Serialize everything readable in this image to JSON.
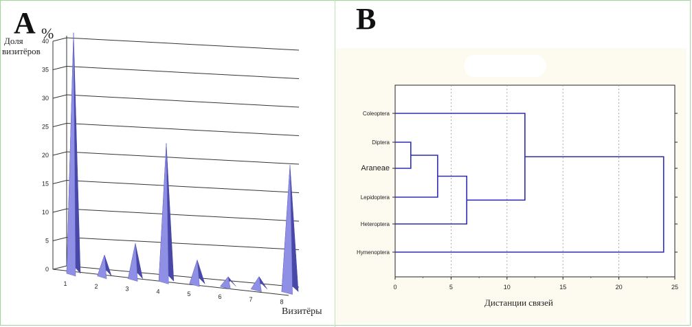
{
  "panel_a": {
    "letter": "A",
    "unit": "%",
    "ylabel_line1": "Доля",
    "ylabel_line2": "визитёров",
    "xlabel": "Визитёры"
  },
  "panel_b": {
    "letter": "B",
    "xlabel": "Дистанции связей"
  },
  "chart_data": [
    {
      "type": "bar",
      "categories": [
        "1",
        "2",
        "3",
        "4",
        "5",
        "6",
        "7",
        "8"
      ],
      "values": [
        41,
        2.5,
        5,
        23,
        3,
        0.5,
        1,
        21
      ],
      "ylabel": "Доля визитёров",
      "unit": "%",
      "xlabel": "Визитёры",
      "yticks": [
        0,
        5,
        10,
        15,
        20,
        25,
        30,
        35,
        40
      ],
      "ylim": [
        0,
        40
      ],
      "grid": true,
      "colors": {
        "bar": "#8f8fe6",
        "bar_dark": "#4848a8",
        "grid": "#333333"
      }
    },
    {
      "type": "dendrogram",
      "leaves": [
        "Coleoptera",
        "Diptera",
        "Araneae",
        "Lepidoptera",
        "Heteroptera",
        "Hymenoptera"
      ],
      "merges": [
        {
          "a": "Diptera",
          "b": "Araneae",
          "distance": 1.4
        },
        {
          "a": "Diptera+Araneae",
          "b": "Lepidoptera",
          "distance": 3.8
        },
        {
          "a": "Diptera+Araneae+Lepidoptera",
          "b": "Heteroptera",
          "distance": 6.4
        },
        {
          "a": "Coleoptera",
          "b": "Diptera+Araneae+Lepidoptera+Heteroptera",
          "distance": 11.6
        },
        {
          "a": "all-but-Hymenoptera",
          "b": "Hymenoptera",
          "distance": 24
        }
      ],
      "xticks": [
        0,
        5,
        10,
        15,
        20,
        25
      ],
      "xlim": [
        0,
        25
      ],
      "xlabel": "Дистанции связей",
      "grid": true,
      "colors": {
        "line": "#2b2bb3",
        "grid": "#999999",
        "background": "#fdfaf0"
      }
    }
  ]
}
